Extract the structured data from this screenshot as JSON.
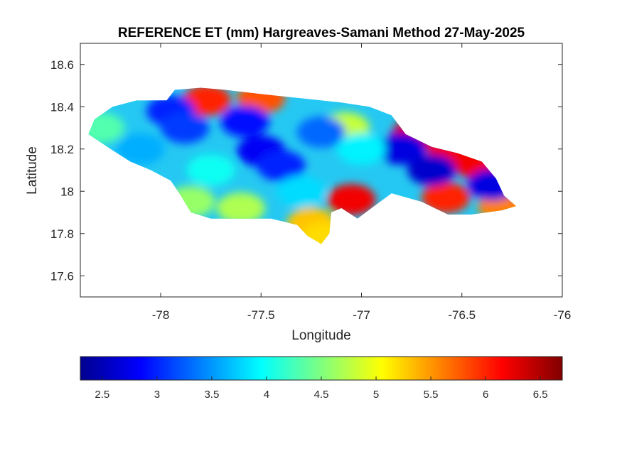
{
  "title": "REFERENCE ET (mm) Hargreaves-Samani Method  27-May-2025",
  "chart_data": {
    "type": "heatmap",
    "title": "REFERENCE ET (mm) Hargreaves-Samani Method  27-May-2025",
    "xlabel": "Longitude",
    "ylabel": "Latitude",
    "xlim": [
      -78.4,
      -76
    ],
    "ylim": [
      17.5,
      18.7
    ],
    "xticks": [
      -78,
      -77.5,
      -77,
      -76.5,
      -76
    ],
    "xtick_labels": [
      "-78",
      "-77.5",
      "-77",
      "-76.5",
      "-76"
    ],
    "yticks": [
      17.6,
      17.8,
      18,
      18.2,
      18.4,
      18.6
    ],
    "ytick_labels": [
      "17.6",
      "17.8",
      "18",
      "18.2",
      "18.4",
      "18.6"
    ],
    "colormap": "jet",
    "colorbar": {
      "orientation": "horizontal",
      "location": "bottom",
      "range": [
        2.3,
        6.7
      ],
      "ticks": [
        2.5,
        3,
        3.5,
        4,
        4.5,
        5,
        5.5,
        6,
        6.5
      ],
      "tick_labels": [
        "2.5",
        "3",
        "3.5",
        "4",
        "4.5",
        "5",
        "5.5",
        "6",
        "6.5"
      ]
    },
    "grid": false,
    "region": "Jamaica",
    "outline": [
      [
        -78.36,
        18.27
      ],
      [
        -78.33,
        18.34
      ],
      [
        -78.24,
        18.4
      ],
      [
        -78.12,
        18.43
      ],
      [
        -77.97,
        18.43
      ],
      [
        -77.93,
        18.48
      ],
      [
        -77.8,
        18.49
      ],
      [
        -77.68,
        18.48
      ],
      [
        -77.5,
        18.46
      ],
      [
        -77.3,
        18.44
      ],
      [
        -77.1,
        18.42
      ],
      [
        -76.96,
        18.4
      ],
      [
        -76.85,
        18.36
      ],
      [
        -76.78,
        18.27
      ],
      [
        -76.65,
        18.21
      ],
      [
        -76.52,
        18.18
      ],
      [
        -76.4,
        18.14
      ],
      [
        -76.33,
        18.06
      ],
      [
        -76.29,
        17.98
      ],
      [
        -76.23,
        17.93
      ],
      [
        -76.3,
        17.91
      ],
      [
        -76.45,
        17.89
      ],
      [
        -76.57,
        17.89
      ],
      [
        -76.7,
        17.95
      ],
      [
        -76.85,
        17.99
      ],
      [
        -76.95,
        17.92
      ],
      [
        -77.02,
        17.87
      ],
      [
        -77.1,
        17.92
      ],
      [
        -77.15,
        17.9
      ],
      [
        -77.16,
        17.8
      ],
      [
        -77.2,
        17.75
      ],
      [
        -77.27,
        17.79
      ],
      [
        -77.32,
        17.84
      ],
      [
        -77.45,
        17.87
      ],
      [
        -77.6,
        17.87
      ],
      [
        -77.75,
        17.87
      ],
      [
        -77.85,
        17.9
      ],
      [
        -77.9,
        17.98
      ],
      [
        -77.95,
        18.05
      ],
      [
        -78.05,
        18.1
      ],
      [
        -78.15,
        18.14
      ],
      [
        -78.25,
        18.2
      ],
      [
        -78.36,
        18.27
      ]
    ],
    "hotspots": [
      {
        "lon": -77.77,
        "lat": 18.43,
        "value": 6.0
      },
      {
        "lon": -77.5,
        "lat": 18.44,
        "value": 5.8
      },
      {
        "lon": -77.08,
        "lat": 18.3,
        "value": 4.8
      },
      {
        "lon": -77.05,
        "lat": 17.96,
        "value": 6.2
      },
      {
        "lon": -77.25,
        "lat": 17.85,
        "value": 5.3
      },
      {
        "lon": -77.18,
        "lat": 17.78,
        "value": 5.2
      },
      {
        "lon": -76.73,
        "lat": 18.27,
        "value": 6.3
      },
      {
        "lon": -76.55,
        "lat": 18.19,
        "value": 6.2
      },
      {
        "lon": -76.42,
        "lat": 18.13,
        "value": 6.2
      },
      {
        "lon": -76.58,
        "lat": 17.97,
        "value": 6.0
      },
      {
        "lon": -76.3,
        "lat": 17.93,
        "value": 5.6
      },
      {
        "lon": -77.6,
        "lat": 17.92,
        "value": 4.7
      },
      {
        "lon": -77.85,
        "lat": 17.95,
        "value": 4.6
      },
      {
        "lon": -78.3,
        "lat": 18.3,
        "value": 4.3
      },
      {
        "lon": -77.95,
        "lat": 18.38,
        "value": 3.0
      },
      {
        "lon": -77.88,
        "lat": 18.3,
        "value": 3.1
      },
      {
        "lon": -77.58,
        "lat": 18.33,
        "value": 2.9
      },
      {
        "lon": -77.5,
        "lat": 18.19,
        "value": 2.8
      },
      {
        "lon": -77.4,
        "lat": 18.12,
        "value": 3.0
      },
      {
        "lon": -77.2,
        "lat": 18.28,
        "value": 3.3
      },
      {
        "lon": -76.8,
        "lat": 18.2,
        "value": 2.7
      },
      {
        "lon": -76.65,
        "lat": 18.1,
        "value": 2.6
      },
      {
        "lon": -76.35,
        "lat": 18.03,
        "value": 2.7
      },
      {
        "lon": -77.0,
        "lat": 18.2,
        "value": 3.9
      },
      {
        "lon": -78.1,
        "lat": 18.2,
        "value": 3.6
      },
      {
        "lon": -77.75,
        "lat": 18.1,
        "value": 4.0
      },
      {
        "lon": -77.3,
        "lat": 18.0,
        "value": 3.8
      }
    ]
  }
}
